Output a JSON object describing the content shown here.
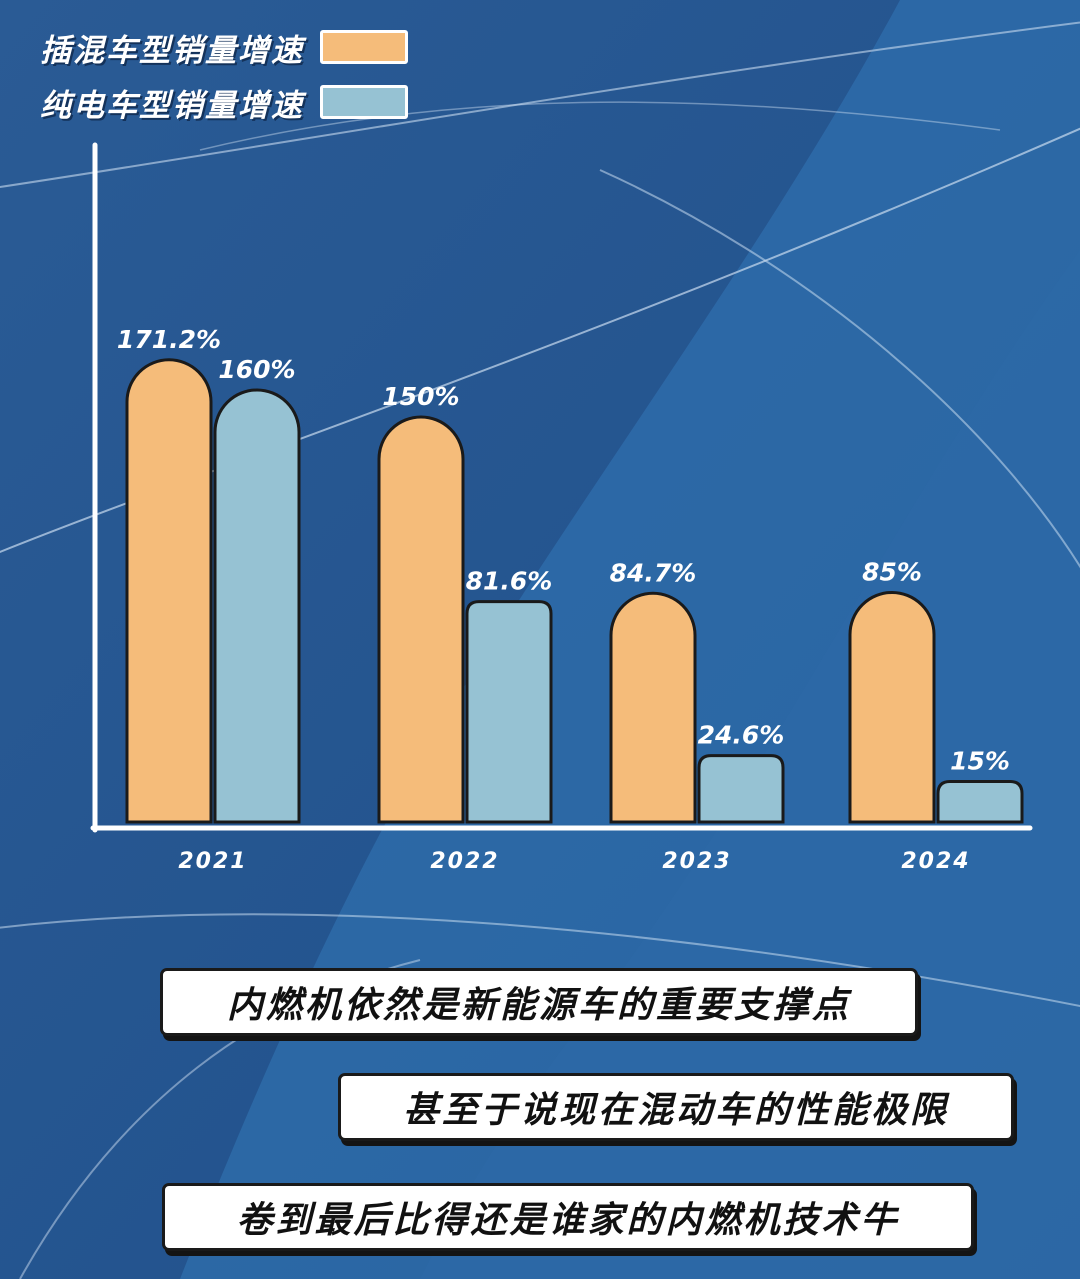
{
  "colors": {
    "background": "#2a5d98",
    "phev": "#f5bc7a",
    "bev": "#96c2d3",
    "outline": "#1a1a1a",
    "axis": "#ffffff"
  },
  "chart_data": {
    "type": "bar",
    "categories": [
      "2021",
      "2022",
      "2023",
      "2024"
    ],
    "series": [
      {
        "name": "插混车型销量增速",
        "values": [
          171.2,
          150,
          84.7,
          85
        ],
        "labels": [
          "171.2%",
          "150%",
          "84.7%",
          "85%"
        ]
      },
      {
        "name": "纯电车型销量增速",
        "values": [
          160,
          81.6,
          24.6,
          15
        ],
        "labels": [
          "160%",
          "81.6%",
          "24.6%",
          "15%"
        ]
      }
    ],
    "ylim": [
      0,
      200
    ],
    "grid": false,
    "legend_position": "top-left"
  },
  "captions": [
    "内燃机依然是新能源车的重要支撑点",
    "甚至于说现在混动车的性能极限",
    "卷到最后比得还是谁家的内燃机技术牛"
  ]
}
